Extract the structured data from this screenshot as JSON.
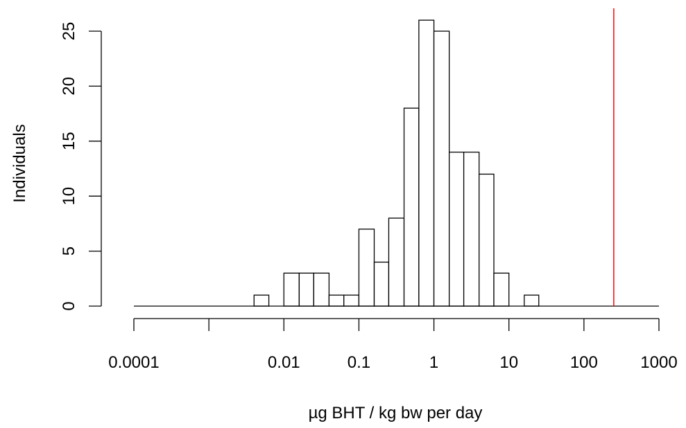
{
  "chart_data": {
    "type": "bar",
    "subtype": "histogram",
    "title": "",
    "xlabel": "µg BHT / kg bw per day",
    "ylabel": "Individuals",
    "x_scale": "log10",
    "xlim": [
      0.0001,
      1000
    ],
    "ylim": [
      0,
      27
    ],
    "x_ticks": [
      0.0001,
      0.001,
      0.01,
      0.1,
      1,
      10,
      100,
      1000
    ],
    "x_tick_labels": [
      "0.0001",
      "",
      "0.01",
      "0.1",
      "1",
      "10",
      "100",
      "1000"
    ],
    "y_ticks": [
      0,
      5,
      10,
      15,
      20,
      25
    ],
    "y_tick_labels": [
      "0",
      "5",
      "10",
      "15",
      "20",
      "25"
    ],
    "bins": [
      {
        "x0": 0.0001,
        "x1": 0.004,
        "count": 0
      },
      {
        "x0": 0.004,
        "x1": 0.0063,
        "count": 1
      },
      {
        "x0": 0.0063,
        "x1": 0.01,
        "count": 0
      },
      {
        "x0": 0.01,
        "x1": 0.016,
        "count": 3
      },
      {
        "x0": 0.016,
        "x1": 0.025,
        "count": 3
      },
      {
        "x0": 0.025,
        "x1": 0.04,
        "count": 3
      },
      {
        "x0": 0.04,
        "x1": 0.063,
        "count": 1
      },
      {
        "x0": 0.063,
        "x1": 0.1,
        "count": 1
      },
      {
        "x0": 0.1,
        "x1": 0.16,
        "count": 7
      },
      {
        "x0": 0.16,
        "x1": 0.25,
        "count": 4
      },
      {
        "x0": 0.25,
        "x1": 0.4,
        "count": 8
      },
      {
        "x0": 0.4,
        "x1": 0.63,
        "count": 18
      },
      {
        "x0": 0.63,
        "x1": 1.0,
        "count": 26
      },
      {
        "x0": 1.0,
        "x1": 1.6,
        "count": 25
      },
      {
        "x0": 1.6,
        "x1": 2.5,
        "count": 14
      },
      {
        "x0": 2.5,
        "x1": 4.0,
        "count": 14
      },
      {
        "x0": 4.0,
        "x1": 6.3,
        "count": 12
      },
      {
        "x0": 6.3,
        "x1": 10,
        "count": 3
      },
      {
        "x0": 10,
        "x1": 16,
        "count": 0
      },
      {
        "x0": 16,
        "x1": 25,
        "count": 1
      },
      {
        "x0": 25,
        "x1": 1000,
        "count": 0
      }
    ],
    "reference_line": {
      "x": 250,
      "color": "#ff0000"
    },
    "grid": false,
    "legend": "none"
  }
}
